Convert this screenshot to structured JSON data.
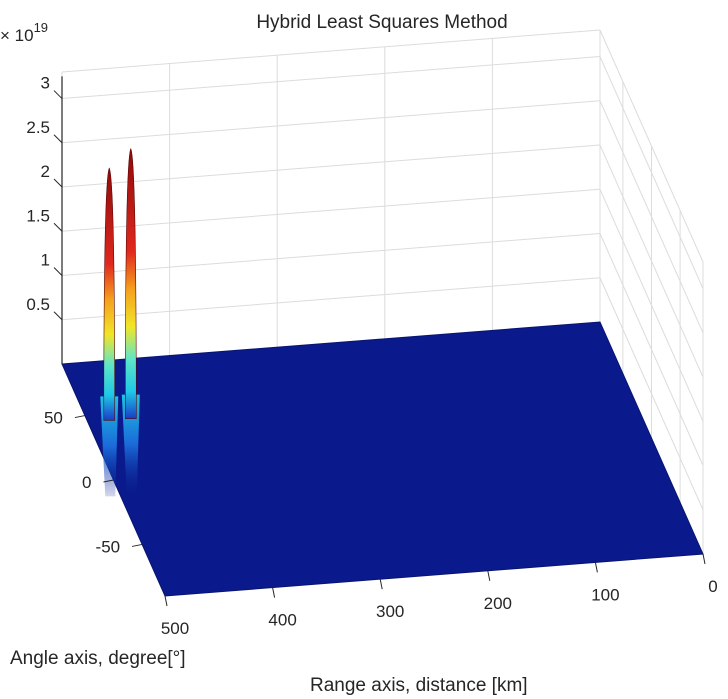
{
  "chart_data": {
    "type": "surface",
    "title": "Hybrid Least Squares Method",
    "zlabel": "",
    "xlabel": "Range axis, distance [km]",
    "ylabel": "Angle axis, degree[°]",
    "exponent_label": "× 10",
    "exponent_power": "19",
    "xlim": [
      0,
      500
    ],
    "ylim": [
      -90,
      90
    ],
    "zlim": [
      0,
      3.3
    ],
    "x_ticks": [
      {
        "value": 500,
        "label": "500"
      },
      {
        "value": 400,
        "label": "400"
      },
      {
        "value": 300,
        "label": "300"
      },
      {
        "value": 200,
        "label": "200"
      },
      {
        "value": 100,
        "label": "100"
      },
      {
        "value": 0,
        "label": "0"
      }
    ],
    "y_ticks": [
      {
        "value": 50,
        "label": "50"
      },
      {
        "value": 0,
        "label": "0"
      },
      {
        "value": -50,
        "label": "-50"
      }
    ],
    "z_ticks": [
      {
        "value": 0.5,
        "label": "0.5"
      },
      {
        "value": 1,
        "label": "1"
      },
      {
        "value": 1.5,
        "label": "1.5"
      },
      {
        "value": 2,
        "label": "2"
      },
      {
        "value": 2.5,
        "label": "2.5"
      },
      {
        "value": 3,
        "label": "3"
      }
    ],
    "peaks": [
      {
        "range": 480,
        "angle": 45,
        "value": 2.85
      },
      {
        "range": 460,
        "angle": 45,
        "value": 3.05
      }
    ],
    "grid": true,
    "colormap": "jet",
    "colors": {
      "floor": "#0a1a8c",
      "grid": "#dcdcdc",
      "axis": "#262626"
    }
  }
}
